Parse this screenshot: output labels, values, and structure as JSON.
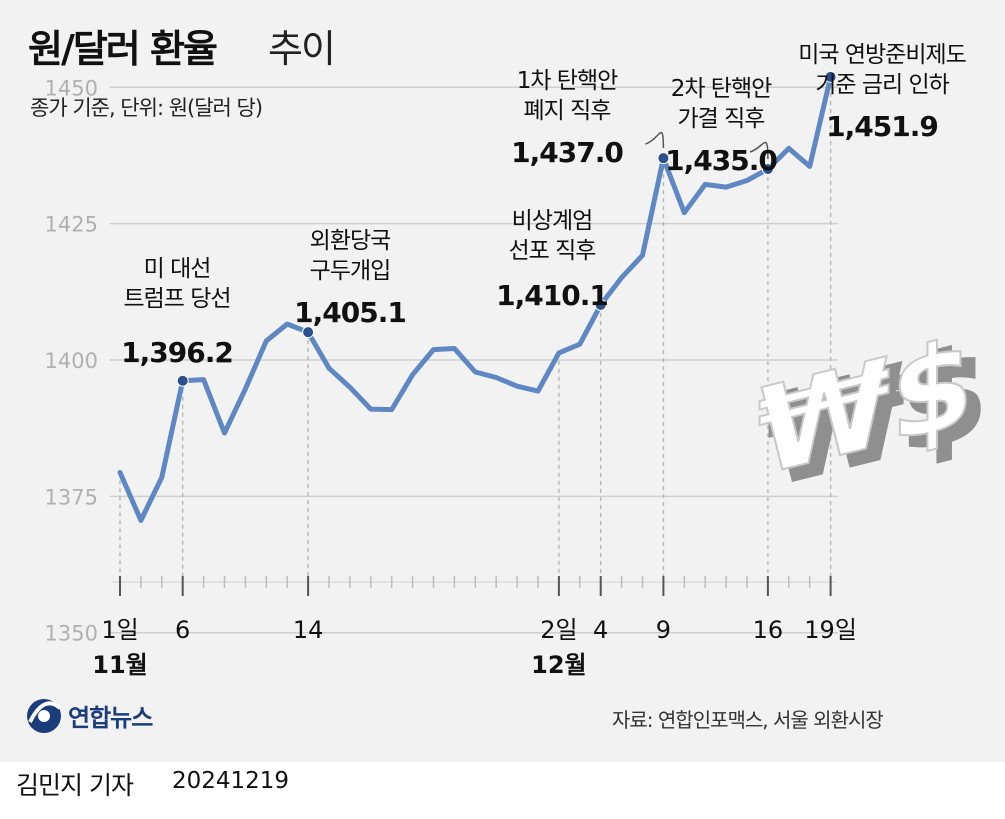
{
  "header": {
    "title_bold": "원/달러 환율",
    "title_light": "추이",
    "subtitle": "종가 기준, 단위: 원(달러 당)"
  },
  "footer": {
    "source": "자료: 연합인포맥스, 서울 외환시장",
    "agency": "연합뉴스",
    "reporter": "김민지 기자",
    "date": "20241219"
  },
  "colors": {
    "line": "#5f87c4",
    "marker": "#2a4f8a",
    "grid": "#cfcfcf",
    "background": "#f2f2f2"
  },
  "chart_data": {
    "type": "line",
    "ylim": [
      1345,
      1455
    ],
    "yticks": [
      1350,
      1375,
      1400,
      1425,
      1450
    ],
    "x_tick_labels": [
      "1일",
      "6",
      "14",
      "2일",
      "4",
      "9",
      "16",
      "19일"
    ],
    "month_labels": [
      "11월",
      "12월"
    ],
    "series": [
      {
        "x": [
          "11-01",
          "11-04",
          "11-05",
          "11-06",
          "11-07",
          "11-08",
          "11-11",
          "11-12",
          "11-13",
          "11-14",
          "11-15",
          "11-18",
          "11-19",
          "11-20",
          "11-21",
          "11-22",
          "11-25",
          "11-26",
          "11-27",
          "11-28",
          "11-29",
          "12-02",
          "12-03",
          "12-04",
          "12-05",
          "12-06",
          "12-09",
          "12-10",
          "12-11",
          "12-12",
          "12-13",
          "12-16",
          "12-17",
          "12-18",
          "12-19"
        ],
        "values": [
          1379.4,
          1370.6,
          1378.5,
          1396.2,
          1396.4,
          1386.6,
          1394.7,
          1403.5,
          1406.6,
          1405.1,
          1398.5,
          1395.0,
          1391.0,
          1390.9,
          1397.3,
          1401.9,
          1402.1,
          1397.8,
          1396.8,
          1395.2,
          1394.3,
          1401.3,
          1402.9,
          1410.1,
          1415.1,
          1419.2,
          1437.0,
          1427.0,
          1432.2,
          1431.7,
          1432.9,
          1435.0,
          1438.8,
          1435.5,
          1451.9
        ]
      }
    ],
    "annotations": [
      {
        "label_lines": [
          "미 대선",
          "트럼프 당선"
        ],
        "value_label": "1,396.2"
      },
      {
        "label_lines": [
          "외환당국",
          "구두개입"
        ],
        "value_label": "1,405.1"
      },
      {
        "label_lines": [
          "비상계엄",
          "선포 직후"
        ],
        "value_label": "1,410.1"
      },
      {
        "label_lines": [
          "1차 탄핵안",
          "폐지 직후"
        ],
        "value_label": "1,437.0"
      },
      {
        "label_lines": [
          "2차 탄핵안",
          "가결 직후"
        ],
        "value_label": "1,435.0"
      },
      {
        "label_lines": [
          "미국 연방준비제도",
          "기준 금리 인하"
        ],
        "value_label": "1,451.9"
      }
    ]
  }
}
